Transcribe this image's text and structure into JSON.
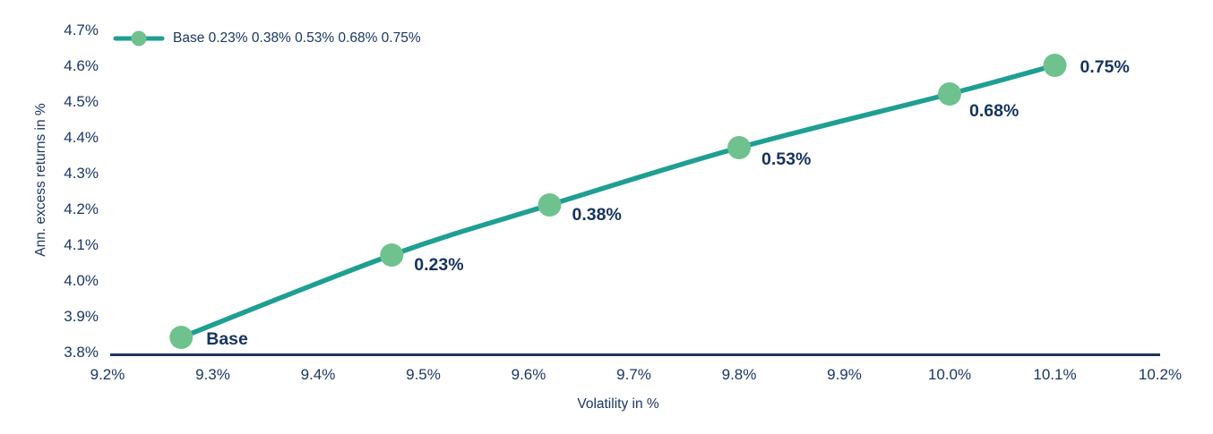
{
  "chart_data": {
    "type": "line",
    "title": "",
    "xlabel": "Volatility in %",
    "ylabel": "Ann. excess returns in %",
    "xlim": [
      9.2,
      10.2
    ],
    "ylim": [
      3.8,
      4.7
    ],
    "grid": false,
    "legend_position": "top-left",
    "x_ticks": [
      {
        "value": 9.2,
        "label": "9.2%"
      },
      {
        "value": 9.3,
        "label": "9.3%"
      },
      {
        "value": 9.4,
        "label": "9.4%"
      },
      {
        "value": 9.5,
        "label": "9.5%"
      },
      {
        "value": 9.6,
        "label": "9.6%"
      },
      {
        "value": 9.7,
        "label": "9.7%"
      },
      {
        "value": 9.8,
        "label": "9.8%"
      },
      {
        "value": 9.9,
        "label": "9.9%"
      },
      {
        "value": 10.0,
        "label": "10.0%"
      },
      {
        "value": 10.1,
        "label": "10.1%"
      },
      {
        "value": 10.2,
        "label": "10.2%"
      }
    ],
    "y_ticks": [
      {
        "value": 3.8,
        "label": "3.8%"
      },
      {
        "value": 3.9,
        "label": "3.9%"
      },
      {
        "value": 4.0,
        "label": "4.0%"
      },
      {
        "value": 4.1,
        "label": "4.1%"
      },
      {
        "value": 4.2,
        "label": "4.2%"
      },
      {
        "value": 4.3,
        "label": "4.3%"
      },
      {
        "value": 4.4,
        "label": "4.4%"
      },
      {
        "value": 4.5,
        "label": "4.5%"
      },
      {
        "value": 4.6,
        "label": "4.6%"
      },
      {
        "value": 4.7,
        "label": "4.7%"
      }
    ],
    "series": [
      {
        "name": "Base 0.23% 0.38% 0.53% 0.68% 0.75%",
        "points": [
          {
            "x": 9.27,
            "y": 3.84,
            "label": "Base",
            "label_dx": 28,
            "label_dy": 8
          },
          {
            "x": 9.47,
            "y": 4.07,
            "label": "0.23%",
            "label_dx": 25,
            "label_dy": 17
          },
          {
            "x": 9.62,
            "y": 4.21,
            "label": "0.38%",
            "label_dx": 25,
            "label_dy": 17
          },
          {
            "x": 9.8,
            "y": 4.37,
            "label": "0.53%",
            "label_dx": 25,
            "label_dy": 19
          },
          {
            "x": 10.0,
            "y": 4.52,
            "label": "0.68%",
            "label_dx": 22,
            "label_dy": 25
          },
          {
            "x": 10.1,
            "y": 4.6,
            "label": "0.75%",
            "label_dx": 28,
            "label_dy": 8
          }
        ]
      }
    ]
  },
  "colors": {
    "line": "#1f9f92",
    "marker": "#6fc28e",
    "text": "#1b3764",
    "label_text": "#16335f",
    "axis_line": "#1d3557",
    "background": "#ffffff"
  }
}
